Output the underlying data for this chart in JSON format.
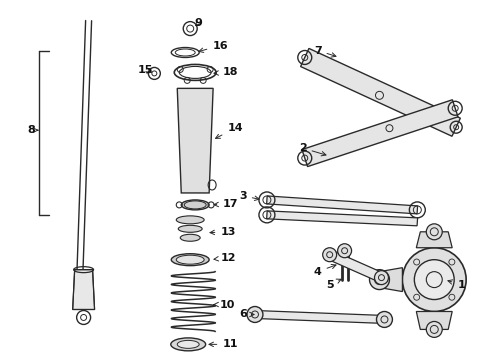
{
  "bg_color": "#ffffff",
  "line_color": "#2a2a2a",
  "label_color": "#111111",
  "fig_width": 4.89,
  "fig_height": 3.6,
  "dpi": 100
}
